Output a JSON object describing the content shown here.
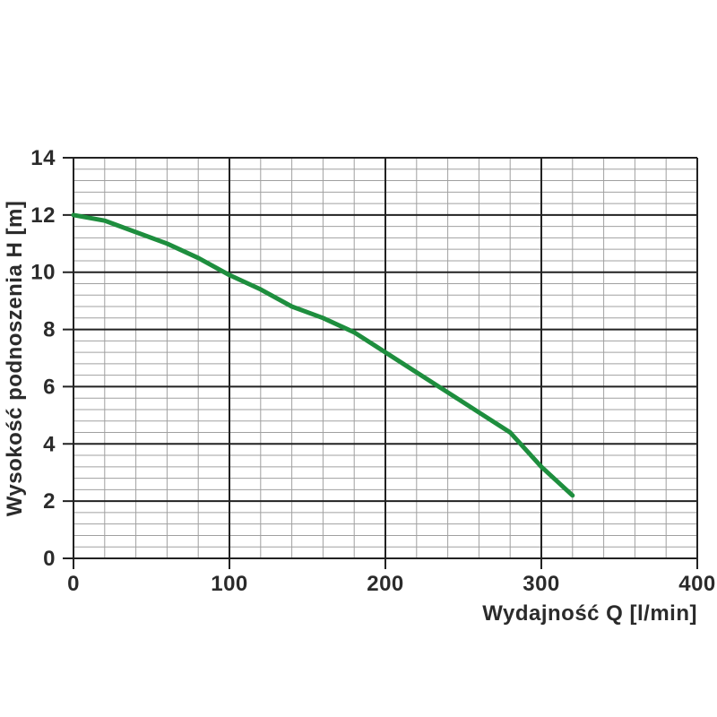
{
  "chart_data": {
    "type": "line",
    "title": "",
    "xlabel": "Wydajność Q [l/min]",
    "ylabel": "Wysokość podnoszenia H [m]",
    "x": [
      0,
      20,
      40,
      60,
      80,
      100,
      120,
      140,
      160,
      180,
      200,
      220,
      240,
      260,
      280,
      300,
      320
    ],
    "values": [
      12.0,
      11.8,
      11.4,
      11.0,
      10.5,
      9.9,
      9.4,
      8.8,
      8.4,
      7.9,
      7.2,
      6.5,
      5.8,
      5.1,
      4.4,
      3.2,
      2.2
    ],
    "xlim": [
      0,
      400
    ],
    "ylim": [
      0,
      14
    ],
    "x_major_ticks": [
      0,
      100,
      200,
      300,
      400
    ],
    "y_major_ticks": [
      0,
      2,
      4,
      6,
      8,
      10,
      12,
      14
    ],
    "x_minor_step": 20,
    "y_minor_step": 0.4,
    "grid": "on",
    "legend": "none",
    "curve_color": "#1e8e3e",
    "curve_width": 5,
    "colors": {
      "major_grid": "#222222",
      "minor_grid": "#a0a0a0",
      "text": "#2b2b2b",
      "background": "#ffffff"
    }
  }
}
